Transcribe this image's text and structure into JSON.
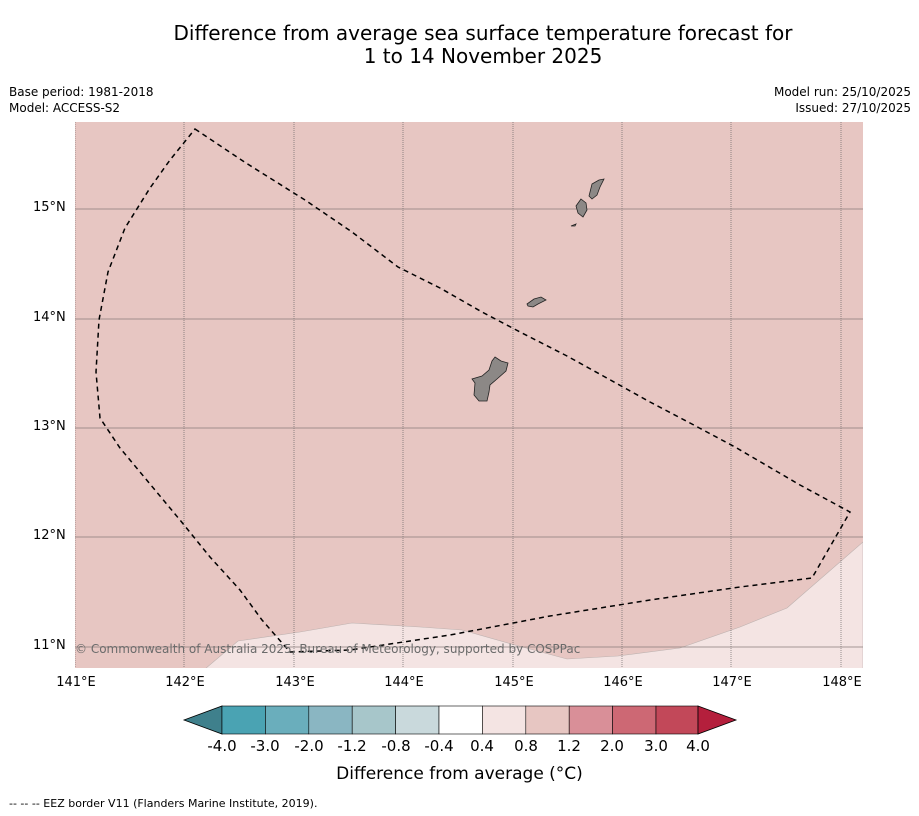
{
  "title_line1": "Difference from average sea surface temperature forecast for",
  "title_line2": "1 to 14 November 2025",
  "meta_left": {
    "base_period": "Base period: 1981-2018",
    "model": "Model: ACCESS-S2"
  },
  "meta_right": {
    "model_run": "Model run: 25/10/2025",
    "issued": "Issued: 27/10/2025"
  },
  "latitude_labels": [
    "15°N",
    "14°N",
    "13°N",
    "12°N",
    "11°N"
  ],
  "longitude_labels": [
    "141°E",
    "142°E",
    "143°E",
    "144°E",
    "145°E",
    "146°E",
    "147°E",
    "148°E"
  ],
  "copyright": "© Commonwealth of Australia 2025, Bureau of Meteorology, supported by COSPPac",
  "colorbar": {
    "ticks": [
      "-4.0",
      "-3.0",
      "-2.0",
      "-1.2",
      "-0.8",
      "-0.4",
      "0.4",
      "0.8",
      "1.2",
      "2.0",
      "3.0",
      "4.0"
    ],
    "colors": [
      "#3f808c",
      "#4aa3b3",
      "#6aaebc",
      "#8ab6c2",
      "#a7c6ca",
      "#c9d9dc",
      "#ffffff",
      "#f4e4e3",
      "#e7c6c2",
      "#d98f98",
      "#cd6874",
      "#c24859",
      "#b41f3c"
    ],
    "label": "Difference from average (°C)"
  },
  "map_colors": {
    "main_anomaly": "#e7c6c2",
    "low_anomaly": "#f4e4e3",
    "land": "#8c8886"
  },
  "footnote": "--  --  -- EEZ border V11 (Flanders Marine Institute, 2019)."
}
